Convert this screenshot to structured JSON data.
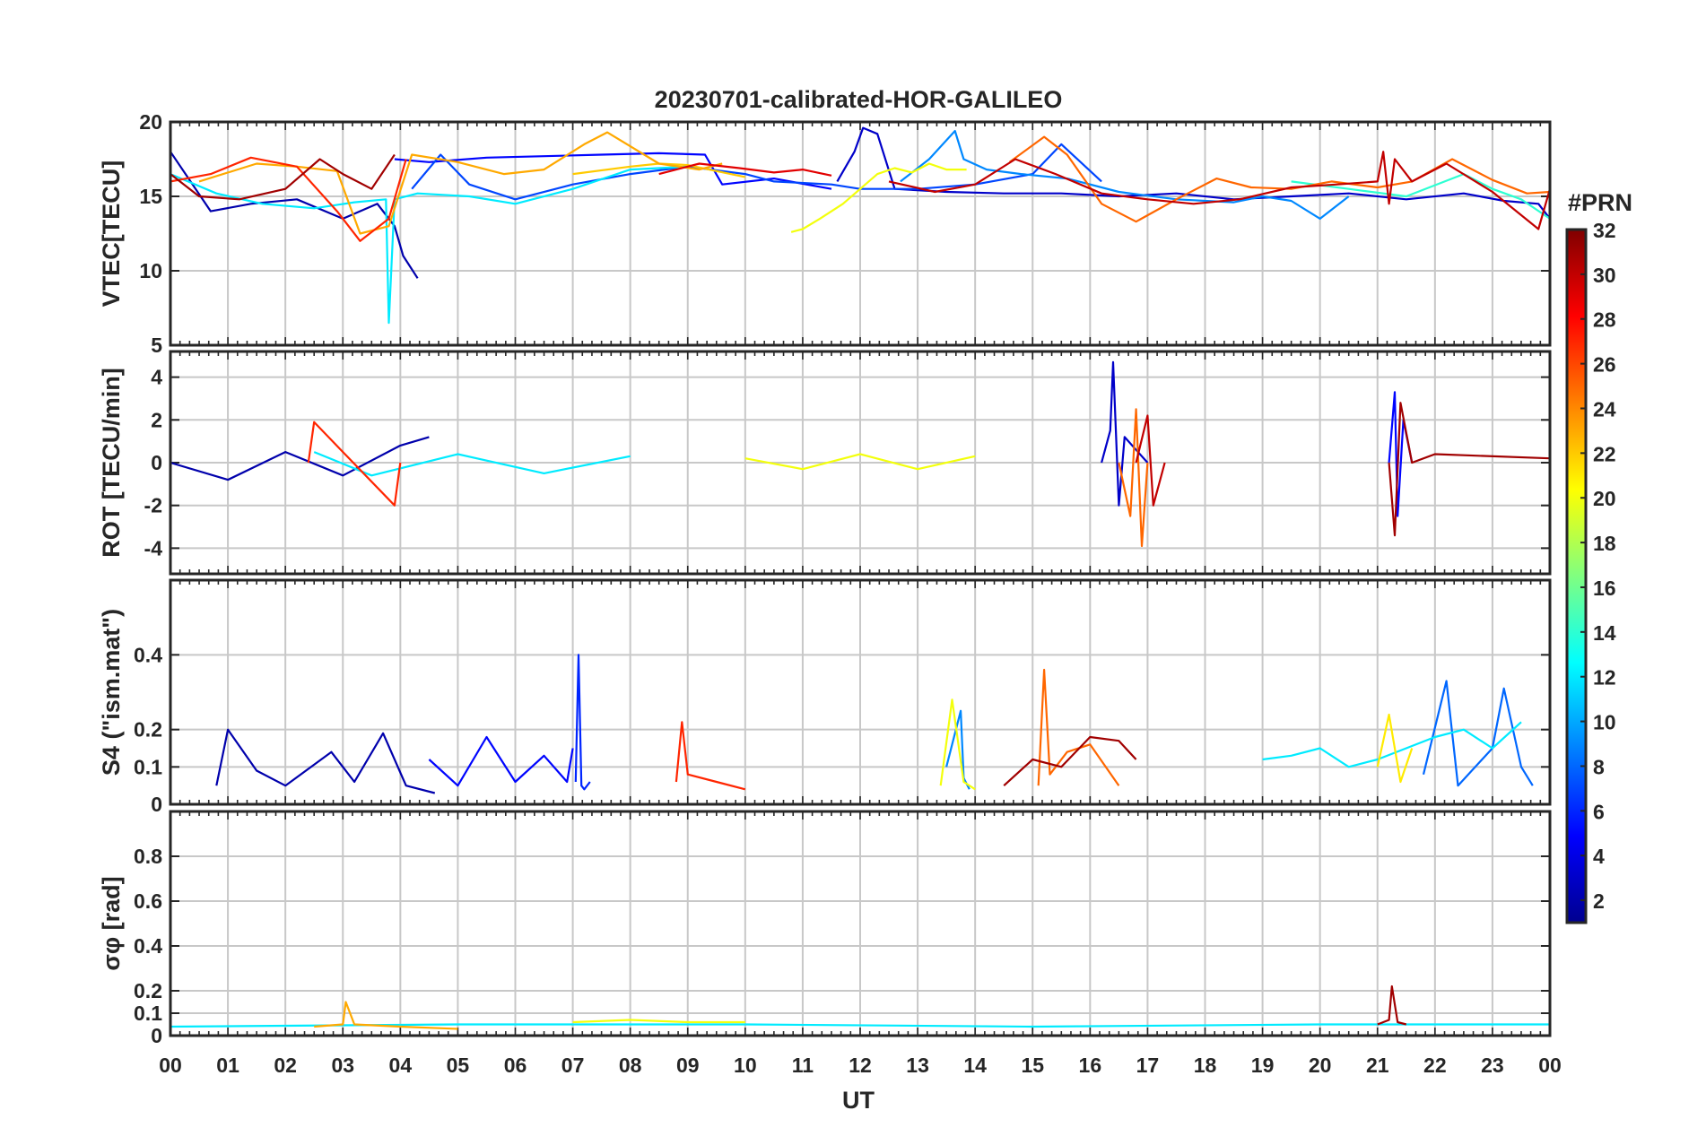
{
  "chart_data": {
    "type": "line",
    "title": "20230701-calibrated-HOR-GALILEO",
    "xlabel": "UT",
    "x_ticks": [
      "00",
      "01",
      "02",
      "03",
      "04",
      "05",
      "06",
      "07",
      "08",
      "09",
      "10",
      "11",
      "12",
      "13",
      "14",
      "15",
      "16",
      "17",
      "18",
      "19",
      "20",
      "21",
      "22",
      "23",
      "00"
    ],
    "xlim": [
      0,
      24
    ],
    "grid": true,
    "colorbar": {
      "label": "#PRN",
      "colormap": "jet",
      "range": [
        1,
        32
      ],
      "ticks": [
        "32",
        "30",
        "28",
        "26",
        "24",
        "22",
        "20",
        "18",
        "16",
        "14",
        "12",
        "10",
        "8",
        "6",
        "4",
        "2"
      ],
      "colors": [
        "#00008f",
        "#0000ff",
        "#0080ff",
        "#00ffff",
        "#80ff80",
        "#ffff00",
        "#ff8000",
        "#ff0000",
        "#800000"
      ]
    },
    "panels": [
      {
        "ylabel": "VTEC[TECU]",
        "ylim": [
          5,
          20
        ],
        "yticks": [
          "20",
          "15",
          "10",
          "5"
        ],
        "series": [
          {
            "prn": 2,
            "x": [
              0,
              0.7,
              1.4,
              2.2,
              3,
              3.6,
              3.9,
              4.05,
              4.3
            ],
            "y": [
              18,
              14,
              14.5,
              14.8,
              13.5,
              14.5,
              13,
              11,
              9.5
            ]
          },
          {
            "prn": 3,
            "x": [
              11.6,
              11.9,
              12.05,
              12.3,
              12.6,
              13.5,
              14.5,
              15.5,
              16.5,
              17.5,
              18.5,
              19.5,
              20.5,
              21.5,
              22.5,
              23.2,
              23.8,
              24
            ],
            "y": [
              16,
              18,
              19.6,
              19.2,
              15.5,
              15.3,
              15.2,
              15.2,
              15,
              15.2,
              14.8,
              15,
              15.2,
              14.8,
              15.2,
              14.7,
              14.5,
              13.5
            ]
          },
          {
            "prn": 5,
            "x": [
              3.9,
              4.5,
              5.5,
              6.5,
              7.5,
              8.5,
              9.3,
              9.6,
              10.5,
              11.5
            ],
            "y": [
              17.5,
              17.3,
              17.6,
              17.7,
              17.8,
              17.9,
              17.8,
              15.8,
              16.2,
              15.5
            ]
          },
          {
            "prn": 7,
            "x": [
              4.2,
              4.7,
              5.2,
              6,
              7,
              8,
              9,
              10,
              10.5,
              11.5,
              12,
              13,
              14,
              15,
              15.5,
              16.2
            ],
            "y": [
              15.5,
              17.8,
              15.8,
              14.8,
              15.8,
              16.5,
              17,
              16.5,
              16,
              15.8,
              15.5,
              15.5,
              15.8,
              16.5,
              18.5,
              16
            ]
          },
          {
            "prn": 9,
            "x": [
              12.7,
              13.2,
              13.65,
              13.8,
              14.2,
              14.8,
              15.6,
              16.5,
              17.5,
              18.5,
              19,
              19.5,
              20,
              20.5
            ],
            "y": [
              16,
              17.5,
              19.4,
              17.5,
              16.8,
              16.5,
              16.2,
              15.3,
              14.8,
              14.6,
              15,
              14.7,
              13.5,
              15
            ]
          },
          {
            "prn": 12,
            "x": [
              0,
              0.8,
              1.6,
              2.5,
              3.2,
              3.75,
              3.8,
              3.9,
              4.3,
              5.2,
              6,
              7,
              8,
              9
            ],
            "y": [
              16.5,
              15.2,
              14.5,
              14.2,
              14.6,
              14.8,
              6.5,
              14.8,
              15.2,
              15,
              14.5,
              15.5,
              16.8,
              17
            ]
          },
          {
            "prn": 14,
            "x": [
              19.5,
              20.5,
              21.5,
              22.5,
              23,
              23.5,
              24
            ],
            "y": [
              16,
              15.5,
              15,
              16.5,
              15.5,
              14.8,
              13.5
            ]
          },
          {
            "prn": 20,
            "x": [
              10.8,
              11,
              11.3,
              11.7,
              12,
              12.3,
              12.6,
              12.9,
              13.2,
              13.5,
              13.85
            ],
            "y": [
              12.6,
              12.8,
              13.5,
              14.5,
              15.5,
              16.5,
              16.9,
              16.6,
              17.2,
              16.8,
              16.8
            ]
          },
          {
            "prn": 22,
            "x": [
              7,
              8,
              8.5,
              9,
              9.5,
              10
            ],
            "y": [
              16.5,
              17,
              17.2,
              17.1,
              16.7,
              16.3
            ]
          },
          {
            "prn": 23,
            "x": [
              0.5,
              1.5,
              2.2,
              2.9,
              3.3,
              3.8,
              4.2,
              5,
              5.8,
              6.5,
              7.2,
              7.6,
              8.5,
              9.2,
              9.6
            ],
            "y": [
              16,
              17.2,
              17,
              16.7,
              12.5,
              13,
              17.8,
              17.3,
              16.5,
              16.8,
              18.5,
              19.3,
              17.2,
              16.8,
              17.2
            ]
          },
          {
            "prn": 25,
            "x": [
              14.6,
              15.2,
              15.6,
              16.2,
              16.8,
              17.5,
              18.2,
              18.8,
              19.5,
              20.2,
              21,
              21.6,
              22.3,
              23,
              23.6,
              24
            ],
            "y": [
              17.3,
              19,
              17.8,
              14.5,
              13.3,
              14.8,
              16.2,
              15.6,
              15.5,
              16,
              15.6,
              16,
              17.5,
              16.1,
              15.2,
              15.3
            ]
          },
          {
            "prn": 27,
            "x": [
              0,
              0.7,
              1.4,
              2.2,
              2.9,
              3.3,
              3.8,
              4.1
            ],
            "y": [
              16,
              16.5,
              17.6,
              17,
              14,
              12,
              13.5,
              17.5
            ]
          },
          {
            "prn": 29,
            "x": [
              8.5,
              9.2,
              9.9,
              10.5,
              11,
              11.5
            ],
            "y": [
              16.5,
              17.2,
              16.9,
              16.6,
              16.8,
              16.4
            ]
          },
          {
            "prn": 30,
            "x": [
              12.5,
              13.3,
              14,
              14.7,
              15.4,
              16.2,
              17,
              17.8,
              18.6,
              19.5,
              20.3,
              21,
              21.1,
              21.2,
              21.3,
              21.6,
              22.2,
              23,
              23.8,
              24
            ],
            "y": [
              16,
              15.3,
              15.8,
              17.5,
              16.5,
              15.2,
              14.8,
              14.5,
              14.8,
              15.6,
              15.8,
              16,
              18,
              14.5,
              17.5,
              16,
              17.2,
              15.3,
              12.8,
              15.5
            ]
          },
          {
            "prn": 31,
            "x": [
              0,
              0.5,
              1.2,
              2,
              2.6,
              3,
              3.5,
              3.9
            ],
            "y": [
              16.5,
              15,
              14.8,
              15.5,
              17.5,
              16.5,
              15.5,
              17.8
            ]
          }
        ]
      },
      {
        "ylabel": "ROT [TECU/min]",
        "ylim": [
          -5.2,
          5.2
        ],
        "yticks": [
          "4",
          "2",
          "0",
          "-2",
          "-4"
        ],
        "series": [
          {
            "prn": 2,
            "x": [
              0,
              1,
              2,
              3,
              4,
              4.5
            ],
            "y": [
              0,
              -0.8,
              0.5,
              -0.6,
              0.8,
              1.2
            ]
          },
          {
            "prn": 3,
            "x": [
              16.2,
              16.35,
              16.4,
              16.5,
              16.6,
              17
            ],
            "y": [
              0,
              1.5,
              4.7,
              -2,
              1.2,
              0
            ]
          },
          {
            "prn": 5,
            "x": [
              21.2,
              21.3,
              21.35,
              21.45,
              21.6
            ],
            "y": [
              0,
              3.3,
              -2.5,
              2,
              0
            ]
          },
          {
            "prn": 12,
            "x": [
              2.5,
              3.5,
              5,
              6.5,
              8
            ],
            "y": [
              0.5,
              -0.6,
              0.4,
              -0.5,
              0.3
            ]
          },
          {
            "prn": 20,
            "x": [
              10,
              11,
              12,
              13,
              14
            ],
            "y": [
              0.2,
              -0.3,
              0.4,
              -0.3,
              0.3
            ]
          },
          {
            "prn": 25,
            "x": [
              16.5,
              16.7,
              16.8,
              16.9,
              17
            ],
            "y": [
              0,
              -2.5,
              2.5,
              -3.9,
              0
            ]
          },
          {
            "prn": 27,
            "x": [
              2.4,
              2.5,
              3,
              3.9,
              4
            ],
            "y": [
              0,
              1.9,
              0.5,
              -2,
              0
            ]
          },
          {
            "prn": 30,
            "x": [
              16.8,
              17,
              17.1,
              17.3
            ],
            "y": [
              0,
              2.2,
              -2,
              0
            ]
          },
          {
            "prn": 31,
            "x": [
              21.2,
              21.3,
              21.4,
              21.6,
              22,
              24
            ],
            "y": [
              0,
              -3.4,
              2.8,
              0,
              0.4,
              0.2
            ]
          }
        ]
      },
      {
        "ylabel": "S4 (\"ism.mat\")",
        "ylim": [
          0,
          0.6
        ],
        "yticks": [
          "0.4",
          "0.2",
          "0.1",
          "0"
        ],
        "series": [
          {
            "prn": 2,
            "x": [
              0.8,
              1,
              1.5,
              2,
              2.8,
              3.2,
              3.7,
              4.1,
              4.6
            ],
            "y": [
              0.05,
              0.2,
              0.09,
              0.05,
              0.14,
              0.06,
              0.19,
              0.05,
              0.03
            ]
          },
          {
            "prn": 5,
            "x": [
              4.5,
              5,
              5.5,
              6,
              6.5,
              6.9,
              7
            ],
            "y": [
              0.12,
              0.05,
              0.18,
              0.06,
              0.13,
              0.06,
              0.15
            ]
          },
          {
            "prn": 6,
            "x": [
              7.05,
              7.1,
              7.15,
              7.2,
              7.3
            ],
            "y": [
              0.06,
              0.4,
              0.05,
              0.04,
              0.06
            ]
          },
          {
            "prn": 9,
            "x": [
              13.5,
              13.75,
              13.8,
              13.9
            ],
            "y": [
              0.1,
              0.25,
              0.07,
              0.04
            ]
          },
          {
            "prn": 8,
            "x": [
              21.8,
              22.2,
              22.4,
              23,
              23.2,
              23.5,
              23.7
            ],
            "y": [
              0.08,
              0.33,
              0.05,
              0.15,
              0.31,
              0.1,
              0.05
            ]
          },
          {
            "prn": 12,
            "x": [
              19,
              19.5,
              20,
              20.5,
              21,
              22,
              22.5,
              23,
              23.5
            ],
            "y": [
              0.12,
              0.13,
              0.15,
              0.1,
              0.12,
              0.18,
              0.2,
              0.15,
              0.22
            ]
          },
          {
            "prn": 20,
            "x": [
              13.4,
              13.6,
              13.8,
              14
            ],
            "y": [
              0.05,
              0.28,
              0.06,
              0.04
            ]
          },
          {
            "prn": 21,
            "x": [
              21,
              21.2,
              21.4,
              21.6
            ],
            "y": [
              0.1,
              0.24,
              0.06,
              0.15
            ]
          },
          {
            "prn": 25,
            "x": [
              15.1,
              15.2,
              15.3,
              15.6,
              16,
              16.5
            ],
            "y": [
              0.05,
              0.36,
              0.08,
              0.14,
              0.16,
              0.05
            ]
          },
          {
            "prn": 27,
            "x": [
              8.8,
              8.9,
              9,
              9.5,
              10
            ],
            "y": [
              0.06,
              0.22,
              0.08,
              0.06,
              0.04
            ]
          },
          {
            "prn": 31,
            "x": [
              14.5,
              15,
              15.5,
              16,
              16.5,
              16.8
            ],
            "y": [
              0.05,
              0.12,
              0.1,
              0.18,
              0.17,
              0.12
            ]
          }
        ]
      },
      {
        "ylabel": "σφ [rad]",
        "ylim": [
          0,
          1
        ],
        "yticks": [
          "0.8",
          "0.6",
          "0.4",
          "0.2",
          "0.1",
          "0"
        ],
        "series": [
          {
            "prn": 12,
            "x": [
              0,
              5,
              10,
              15,
              20,
              24
            ],
            "y": [
              0.04,
              0.05,
              0.05,
              0.04,
              0.05,
              0.05
            ]
          },
          {
            "prn": 20,
            "x": [
              7,
              8,
              9,
              10
            ],
            "y": [
              0.06,
              0.07,
              0.06,
              0.06
            ]
          },
          {
            "prn": 23,
            "x": [
              2.5,
              3,
              3.05,
              3.2,
              4,
              5
            ],
            "y": [
              0.04,
              0.05,
              0.15,
              0.05,
              0.04,
              0.03
            ]
          },
          {
            "prn": 31,
            "x": [
              21,
              21.2,
              21.25,
              21.35,
              21.5
            ],
            "y": [
              0.05,
              0.07,
              0.22,
              0.06,
              0.05
            ]
          }
        ]
      }
    ]
  }
}
